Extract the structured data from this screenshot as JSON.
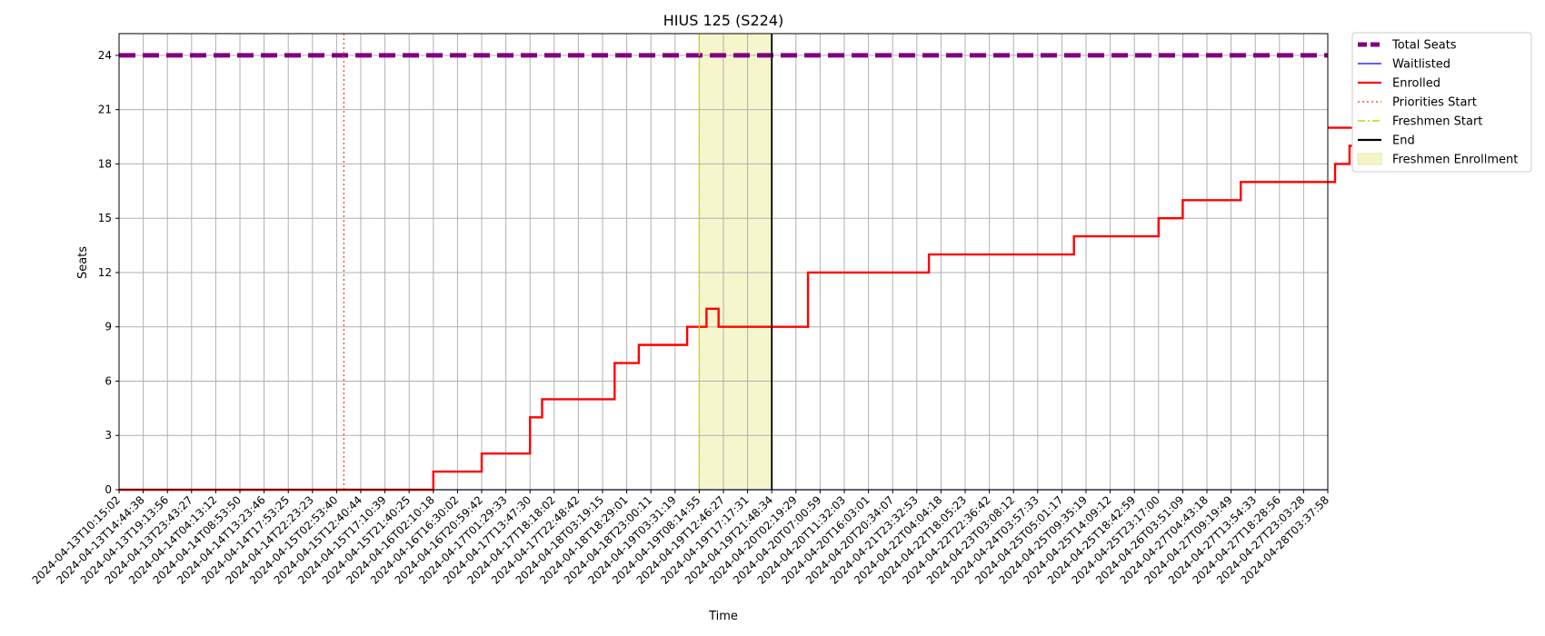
{
  "chart_data": {
    "type": "line",
    "title": "HIUS 125 (S224)",
    "xlabel": "Time",
    "ylabel": "Seats",
    "ylim": [
      0,
      25.2
    ],
    "yticks": [
      0,
      3,
      6,
      9,
      12,
      15,
      18,
      21,
      24
    ],
    "grid": true,
    "legend_position": "outside-top-right",
    "x_range_hours": [
      0,
      353.4
    ],
    "x_ticks": [
      {
        "label": "2024-04-13T10:15:02",
        "hours": 0
      },
      {
        "label": "2024-04-13T14:44:38",
        "hours": 4.49
      },
      {
        "label": "2024-04-13T19:13:56",
        "hours": 8.98
      },
      {
        "label": "2024-04-13T23:43:27",
        "hours": 13.47
      },
      {
        "label": "2024-04-14T04:13:12",
        "hours": 17.97
      },
      {
        "label": "2024-04-14T08:53:50",
        "hours": 22.65
      },
      {
        "label": "2024-04-14T13:23:46",
        "hours": 27.15
      },
      {
        "label": "2024-04-14T17:53:25",
        "hours": 31.64
      },
      {
        "label": "2024-04-14T22:23:23",
        "hours": 36.14
      },
      {
        "label": "2024-04-15T02:53:40",
        "hours": 40.64
      },
      {
        "label": "2024-04-15T12:40:44",
        "hours": 50.43
      },
      {
        "label": "2024-04-15T17:10:39",
        "hours": 54.93
      },
      {
        "label": "2024-04-15T21:40:25",
        "hours": 59.42
      },
      {
        "label": "2024-04-16T02:10:18",
        "hours": 63.92
      },
      {
        "label": "2024-04-16T16:30:02",
        "hours": 78.25
      },
      {
        "label": "2024-04-16T20:59:42",
        "hours": 82.74
      },
      {
        "label": "2024-04-17T01:29:33",
        "hours": 87.24
      },
      {
        "label": "2024-04-17T13:47:30",
        "hours": 99.54
      },
      {
        "label": "2024-04-17T18:18:02",
        "hours": 104.05
      },
      {
        "label": "2024-04-17T22:48:42",
        "hours": 108.56
      },
      {
        "label": "2024-04-18T03:19:15",
        "hours": 113.07
      },
      {
        "label": "2024-04-18T18:29:01",
        "hours": 128.23
      },
      {
        "label": "2024-04-18T23:00:11",
        "hours": 132.75
      },
      {
        "label": "2024-04-19T03:31:19",
        "hours": 137.27
      },
      {
        "label": "2024-04-19T08:14:55",
        "hours": 142.0
      },
      {
        "label": "2024-04-19T12:46:27",
        "hours": 146.52
      },
      {
        "label": "2024-04-19T17:17:31",
        "hours": 151.04
      },
      {
        "label": "2024-04-19T21:48:34",
        "hours": 155.56
      },
      {
        "label": "2024-04-20T02:19:29",
        "hours": 160.07
      },
      {
        "label": "2024-04-20T07:00:59",
        "hours": 164.77
      },
      {
        "label": "2024-04-20T11:32:03",
        "hours": 169.28
      },
      {
        "label": "2024-04-20T16:03:01",
        "hours": 173.8
      },
      {
        "label": "2024-04-20T20:34:07",
        "hours": 178.32
      },
      {
        "label": "2024-04-21T23:32:53",
        "hours": 205.3
      },
      {
        "label": "2024-04-22T04:04:18",
        "hours": 209.82
      },
      {
        "label": "2024-04-22T18:05:23",
        "hours": 223.84
      },
      {
        "label": "2024-04-22T22:36:42",
        "hours": 228.36
      },
      {
        "label": "2024-04-23T03:08:12",
        "hours": 232.89
      },
      {
        "label": "2024-04-24T03:57:33",
        "hours": 257.71
      },
      {
        "label": "2024-04-25T05:01:17",
        "hours": 282.77
      },
      {
        "label": "2024-04-25T09:35:19",
        "hours": 287.34
      },
      {
        "label": "2024-04-25T14:09:12",
        "hours": 291.9
      },
      {
        "label": "2024-04-25T18:42:59",
        "hours": 296.47
      },
      {
        "label": "2024-04-25T23:17:00",
        "hours": 301.03
      },
      {
        "label": "2024-04-26T03:51:09",
        "hours": 305.6
      },
      {
        "label": "2024-04-27T04:43:18",
        "hours": 330.47
      },
      {
        "label": "2024-04-27T09:19:49",
        "hours": 335.08
      },
      {
        "label": "2024-04-27T13:54:33",
        "hours": 339.66
      },
      {
        "label": "2024-04-27T18:28:56",
        "hours": 344.23
      },
      {
        "label": "2024-04-27T23:03:28",
        "hours": 348.81
      },
      {
        "label": "2024-04-28T03:37:58",
        "hours": 353.38
      }
    ],
    "total_seats": 24,
    "waitlisted": 0,
    "enrolled_steps": [
      [
        0,
        0
      ],
      [
        13,
        1
      ],
      [
        15,
        2
      ],
      [
        17,
        4
      ],
      [
        17.5,
        5
      ],
      [
        20.5,
        7
      ],
      [
        21.5,
        8
      ],
      [
        23.5,
        9
      ],
      [
        24.3,
        10
      ],
      [
        24.8,
        9
      ],
      [
        28.5,
        12
      ],
      [
        33.5,
        13
      ],
      [
        39.5,
        14
      ],
      [
        43,
        15
      ],
      [
        44,
        16
      ],
      [
        46.4,
        17
      ],
      [
        50.3,
        18
      ],
      [
        50.9,
        19
      ],
      [
        51.7,
        20
      ]
    ],
    "events": {
      "priorities_start_tick": 9.3,
      "freshmen_start_tick": 24,
      "end_tick": 27
    },
    "legend": [
      {
        "key": "total",
        "label": "Total Seats",
        "color": "#800080",
        "style": "dashed-thick"
      },
      {
        "key": "waitlisted",
        "label": "Waitlisted",
        "color": "#0000ff",
        "style": "solid-thin"
      },
      {
        "key": "enrolled",
        "label": "Enrolled",
        "color": "#ff0000",
        "style": "solid"
      },
      {
        "key": "priorities",
        "label": "Priorities Start",
        "color": "#e0622a",
        "style": "dotted"
      },
      {
        "key": "freshmen",
        "label": "Freshmen Start",
        "color": "#c7d400",
        "style": "dashdot"
      },
      {
        "key": "end",
        "label": "End",
        "color": "#000000",
        "style": "solid"
      },
      {
        "key": "freshmen_area",
        "label": "Freshmen Enrollment",
        "color": "#f5f5c8",
        "style": "patch"
      }
    ]
  }
}
